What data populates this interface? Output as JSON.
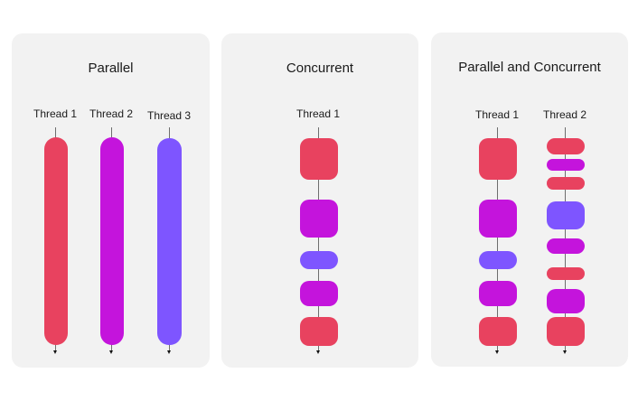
{
  "colors": {
    "red": "#E8425F",
    "purple": "#C414DC",
    "violet": "#7E55FF"
  },
  "panels": [
    {
      "title": "Parallel",
      "threads": [
        {
          "label": "Thread 1",
          "tasks": [
            "red"
          ]
        },
        {
          "label": "Thread 2",
          "tasks": [
            "purple"
          ]
        },
        {
          "label": "Thread 3",
          "tasks": [
            "violet"
          ]
        }
      ]
    },
    {
      "title": "Concurrent",
      "threads": [
        {
          "label": "Thread 1",
          "tasks": [
            "red",
            "purple",
            "violet",
            "purple",
            "red"
          ]
        }
      ]
    },
    {
      "title": "Parallel and Concurrent",
      "threads": [
        {
          "label": "Thread 1",
          "tasks": [
            "red",
            "purple",
            "violet",
            "purple",
            "red"
          ]
        },
        {
          "label": "Thread 2",
          "tasks": [
            "red",
            "purple",
            "red",
            "violet",
            "purple",
            "red",
            "purple",
            "red"
          ]
        }
      ]
    }
  ]
}
